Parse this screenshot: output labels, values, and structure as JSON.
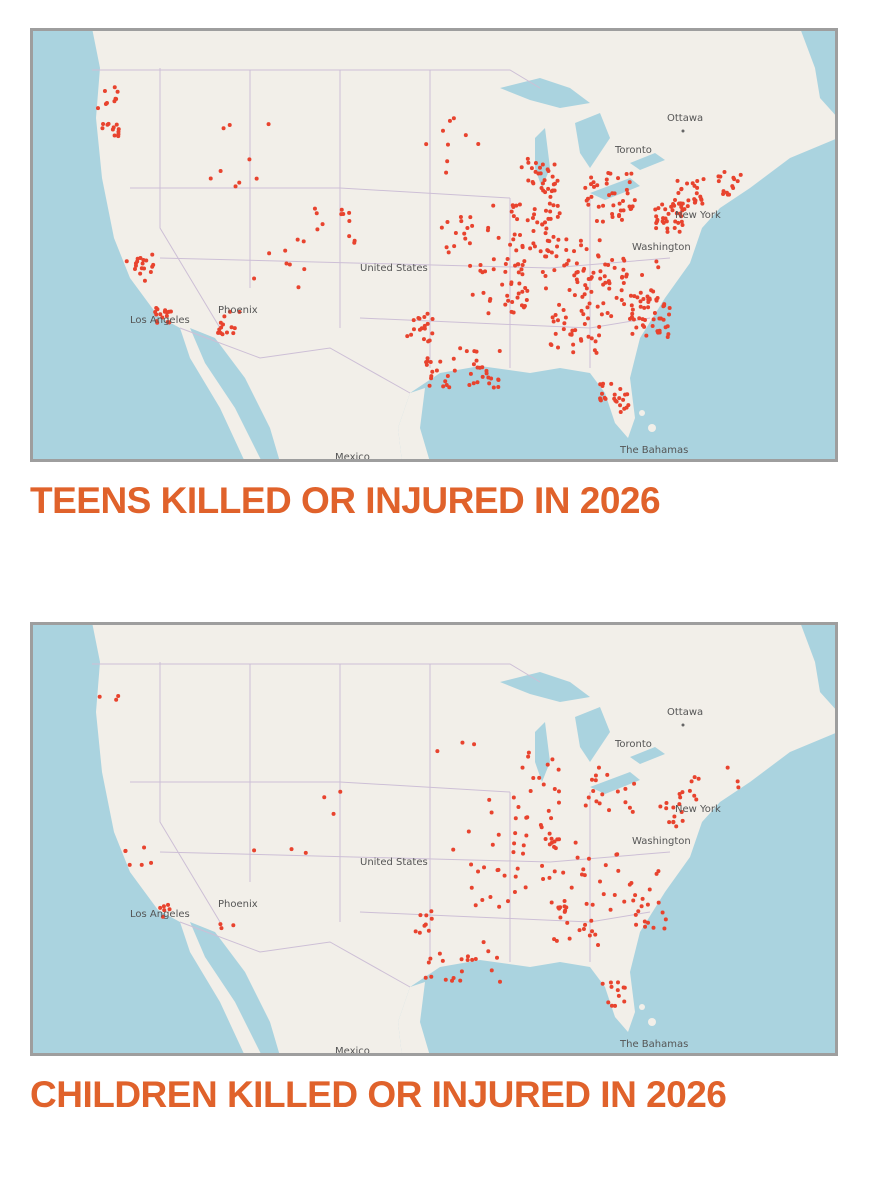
{
  "maps": [
    {
      "labels": [
        "Ottawa",
        "Toronto",
        "New York",
        "Washington",
        "United States",
        "Phoenix",
        "Los Angeles",
        "The Bahamas",
        "Mexico"
      ],
      "title": "TEENS KILLED OR INJURED IN 2026"
    },
    {
      "labels": [
        "Ottawa",
        "Toronto",
        "New York",
        "Washington",
        "United States",
        "Phoenix",
        "Los Angeles",
        "The Bahamas",
        "Mexico"
      ],
      "title": "CHILDREN KILLED OR INJURED IN 2026"
    }
  ]
}
